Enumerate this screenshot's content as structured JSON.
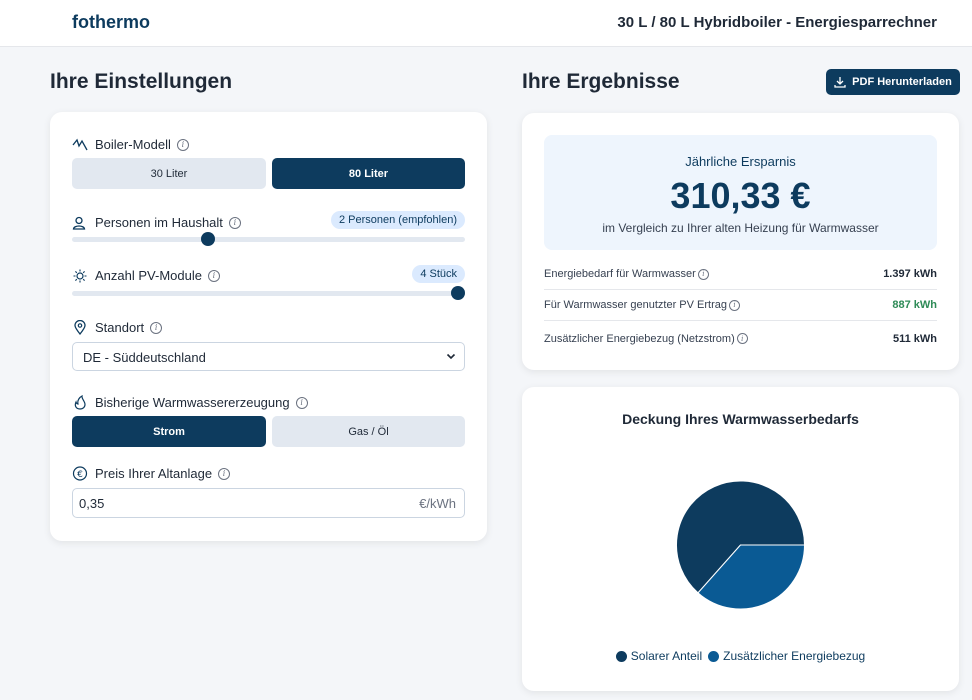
{
  "app": {
    "brand": "fothermo",
    "title": "30 L / 80 L Hybridboiler - Energiesparrechner"
  },
  "settings": {
    "heading": "Ihre Einstellungen",
    "boiler": {
      "label": "Boiler-Modell",
      "options": [
        "30 Liter",
        "80 Liter"
      ],
      "selected": "80 Liter"
    },
    "persons": {
      "label": "Personen im Haushalt",
      "badge": "2 Personen (empfohlen)",
      "slider_fraction": 0.34
    },
    "pv": {
      "label": "Anzahl PV-Module",
      "badge": "4 Stück",
      "slider_fraction": 1.0
    },
    "location": {
      "label": "Standort",
      "value": "DE - Süddeutschland"
    },
    "prior_heating": {
      "label": "Bisherige Warmwassererzeugung",
      "options": [
        "Strom",
        "Gas / Öl"
      ],
      "selected": "Strom"
    },
    "price": {
      "label": "Preis Ihrer Altanlage",
      "value": "0,35",
      "unit": "€/kWh"
    }
  },
  "results": {
    "heading": "Ihre Ergebnisse",
    "pdf_button": "PDF Herunterladen",
    "savings": {
      "label": "Jährliche Ersparnis",
      "value": "310,33 €",
      "sub": "im Vergleich zu Ihrer alten Heizung für Warmwasser"
    },
    "stats": [
      {
        "label": "Energiebedarf für Warmwasser",
        "value": "1.397 kWh",
        "color": "#1f2937"
      },
      {
        "label": "Für Warmwasser genutzter PV Ertrag",
        "value": "887 kWh",
        "color": "#2e8b57"
      },
      {
        "label": "Zusätzlicher Energiebezug (Netzstrom)",
        "value": "511 kWh",
        "color": "#1f2937"
      }
    ]
  },
  "chart": {
    "title": "Deckung Ihres Warmwasserbedarfs",
    "legend": [
      "Solarer Anteil",
      "Zusätzlicher Energiebezug"
    ]
  },
  "chart_data": {
    "type": "pie",
    "title": "Deckung Ihres Warmwasserbedarfs",
    "categories": [
      "Solarer Anteil",
      "Zusätzlicher Energiebezug"
    ],
    "values": [
      887,
      511
    ],
    "colors": [
      "#0d3b5e",
      "#0a5a94"
    ],
    "legend": "bottom"
  },
  "colors": {
    "primary": "#0d3b5e",
    "accent": "#0a5a94",
    "positive": "#2e8b57"
  }
}
